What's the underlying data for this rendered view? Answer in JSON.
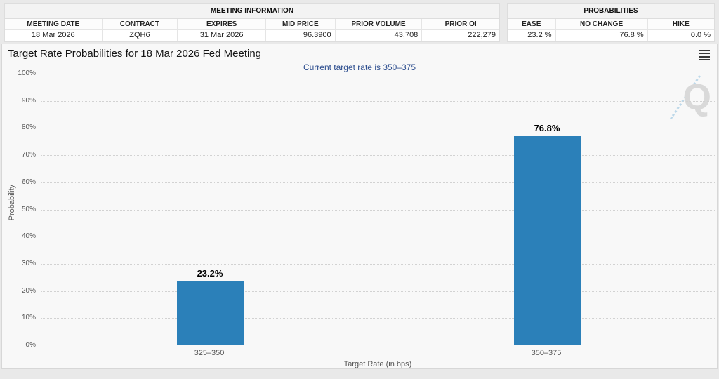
{
  "meeting_info": {
    "title": "MEETING INFORMATION",
    "columns": [
      "MEETING DATE",
      "CONTRACT",
      "EXPIRES",
      "MID PRICE",
      "PRIOR VOLUME",
      "PRIOR OI"
    ],
    "values": [
      "18 Mar 2026",
      "ZQH6",
      "31 Mar 2026",
      "96.3900",
      "43,708",
      "222,279"
    ]
  },
  "probabilities": {
    "title": "PROBABILITIES",
    "columns": [
      "EASE",
      "NO CHANGE",
      "HIKE"
    ],
    "values": [
      "23.2 %",
      "76.8 %",
      "0.0 %"
    ]
  },
  "chart_data": {
    "type": "bar",
    "title": "Target Rate Probabilities for 18 Mar 2026 Fed Meeting",
    "subtitle": "Current target rate is 350–375",
    "categories": [
      "325–350",
      "350–375"
    ],
    "values": [
      23.2,
      76.8
    ],
    "bar_labels": [
      "23.2%",
      "76.8%"
    ],
    "xlabel": "Target Rate (in bps)",
    "ylabel": "Probability",
    "ylim": [
      0,
      100
    ],
    "ytick_step": 10,
    "ytick_labels": [
      "0%",
      "10%",
      "20%",
      "30%",
      "40%",
      "50%",
      "60%",
      "70%",
      "80%",
      "90%",
      "100%"
    ],
    "grid": "dotted-horizontal",
    "legend": "none",
    "bar_color": "#2b80b9",
    "subtitle_color": "#2c4d8e",
    "watermark_letter": "Q"
  }
}
